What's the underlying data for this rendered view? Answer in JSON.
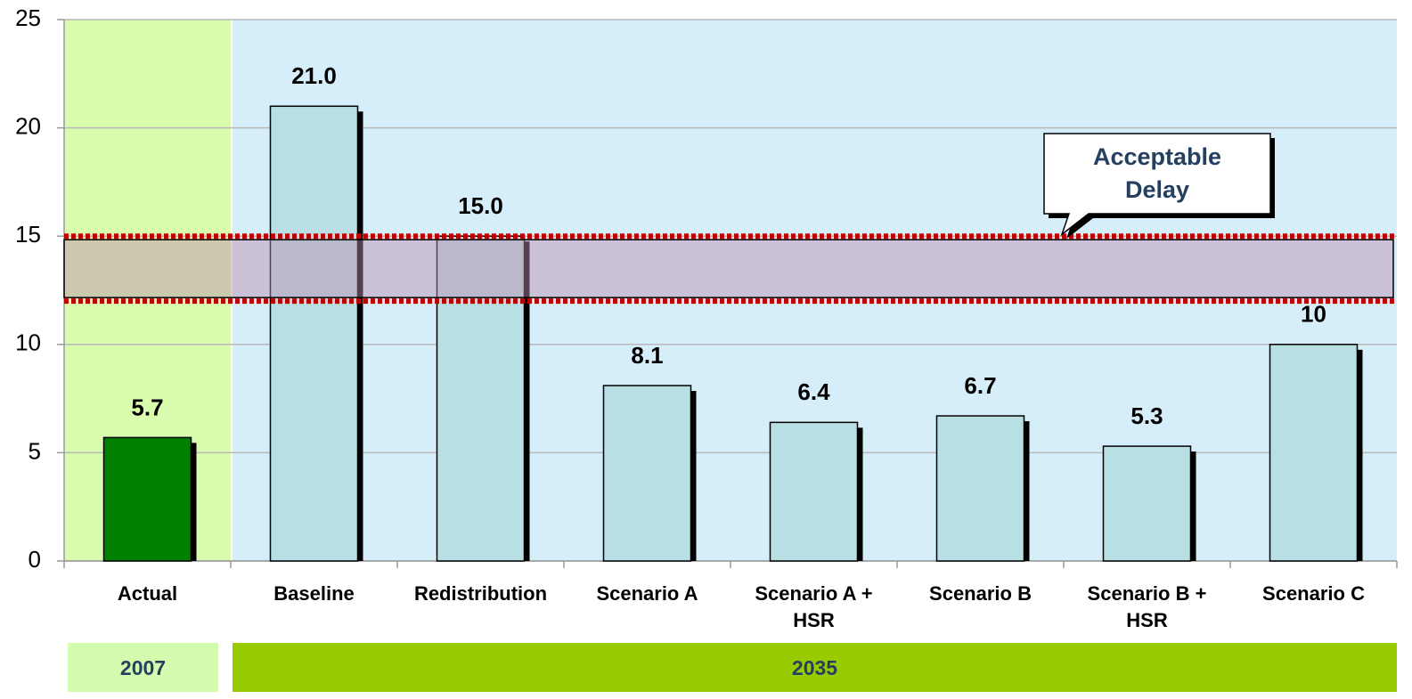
{
  "chart_data": {
    "type": "bar",
    "categories": [
      "Actual",
      "Baseline",
      "Redistribution",
      "Scenario A",
      "Scenario A + HSR",
      "Scenario B",
      "Scenario B + HSR",
      "Scenario C"
    ],
    "values": [
      5.7,
      21.0,
      15.0,
      8.1,
      6.4,
      6.7,
      5.3,
      10
    ],
    "value_labels": [
      "5.7",
      "21.0",
      "15.0",
      "8.1",
      "6.4",
      "6.7",
      "5.3",
      "10"
    ],
    "colors": [
      "#008000",
      "#b8e0e4",
      "#b8e0e4",
      "#b8e0e4",
      "#b8e0e4",
      "#b8e0e4",
      "#b8e0e4",
      "#b8e0e4"
    ],
    "ylim": [
      0,
      25
    ],
    "yticks": [
      0,
      5,
      10,
      15,
      20,
      25
    ],
    "grid": true,
    "acceptable_band": {
      "label": "Acceptable Delay",
      "range": [
        12,
        15
      ]
    },
    "groups": [
      {
        "label": "2007",
        "span": 1,
        "color": "#d4fcae"
      },
      {
        "label": "2035",
        "span": 7,
        "color": "#99cc00"
      }
    ]
  }
}
